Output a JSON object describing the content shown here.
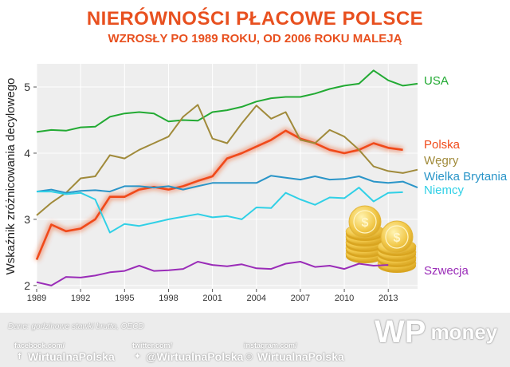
{
  "header": {
    "title": "NIERÓWNOŚCI PŁACOWE POLSCE",
    "subtitle": "WZROSŁY PO 1989 ROKU, OD 2006 ROKU MALEJĄ"
  },
  "colors": {
    "title": "#e8501f",
    "usa": "#22aa33",
    "polska": "#f04a1a",
    "wegry": "#a08a3a",
    "wielka_brytania": "#2a95c8",
    "niemcy": "#30d0e6",
    "szwecja": "#9a2cb8",
    "plot_bg": "#eeeeee"
  },
  "chart_data": {
    "type": "line",
    "title": "NIERÓWNOŚCI PŁACOWE POLSCE",
    "subtitle": "WZROSŁY PO 1989 ROKU, OD 2006 ROKU MALEJĄ",
    "xlabel": "",
    "ylabel": "Wskaźnik zróżnicowania decylowego",
    "xlim": [
      1989,
      2015
    ],
    "ylim": [
      1.95,
      5.35
    ],
    "x_ticks": [
      1989,
      1992,
      1995,
      1998,
      2001,
      2004,
      2007,
      2010,
      2013
    ],
    "x_tick_labels": [
      "1989",
      "1992",
      "1995",
      "1998",
      "2001",
      "2004",
      "2007",
      "2010",
      "2013"
    ],
    "y_ticks": [
      2,
      3,
      4,
      5
    ],
    "y_tick_labels": [
      "2",
      "3",
      "4",
      "5"
    ],
    "grid": true,
    "legend": "labels at right end of lines",
    "series": [
      {
        "name": "USA",
        "key": "usa",
        "x": [
          1989,
          1990,
          1991,
          1992,
          1993,
          1994,
          1995,
          1996,
          1997,
          1998,
          1999,
          2000,
          2001,
          2002,
          2003,
          2004,
          2005,
          2006,
          2007,
          2008,
          2009,
          2010,
          2011,
          2012,
          2013,
          2014,
          2015
        ],
        "y": [
          4.32,
          4.35,
          4.34,
          4.39,
          4.4,
          4.55,
          4.6,
          4.62,
          4.6,
          4.48,
          4.5,
          4.49,
          4.62,
          4.65,
          4.7,
          4.78,
          4.83,
          4.85,
          4.85,
          4.9,
          4.97,
          5.02,
          5.05,
          5.25,
          5.1,
          5.02,
          5.05
        ]
      },
      {
        "name": "Polska",
        "key": "polska",
        "x": [
          1989,
          1990,
          1991,
          1992,
          1993,
          1994,
          1995,
          1996,
          1997,
          1998,
          1999,
          2000,
          2001,
          2002,
          2003,
          2004,
          2005,
          2006,
          2007,
          2008,
          2009,
          2010,
          2011,
          2012,
          2013,
          2014
        ],
        "y": [
          2.39,
          2.92,
          2.82,
          2.86,
          3.0,
          3.34,
          3.34,
          3.45,
          3.49,
          3.45,
          3.5,
          3.58,
          3.65,
          3.92,
          4.0,
          4.1,
          4.2,
          4.34,
          4.22,
          4.15,
          4.05,
          4.0,
          4.05,
          4.15,
          4.08,
          4.05
        ]
      },
      {
        "name": "Węgry",
        "key": "wegry",
        "x": [
          1989,
          1990,
          1991,
          1992,
          1993,
          1994,
          1995,
          1996,
          1997,
          1998,
          1999,
          2000,
          2001,
          2002,
          2003,
          2004,
          2005,
          2006,
          2007,
          2008,
          2009,
          2010,
          2011,
          2012,
          2013,
          2014,
          2015
        ],
        "y": [
          3.06,
          3.25,
          3.4,
          3.62,
          3.65,
          3.97,
          3.92,
          4.05,
          4.15,
          4.25,
          4.55,
          4.73,
          4.22,
          4.15,
          4.45,
          4.72,
          4.52,
          4.62,
          4.2,
          4.15,
          4.35,
          4.25,
          4.05,
          3.8,
          3.73,
          3.7,
          3.75
        ]
      },
      {
        "name": "Wielka Brytania",
        "key": "wielka_brytania",
        "x": [
          1989,
          1990,
          1991,
          1992,
          1993,
          1994,
          1995,
          1996,
          1997,
          1998,
          1999,
          2000,
          2001,
          2002,
          2003,
          2004,
          2005,
          2006,
          2007,
          2008,
          2009,
          2010,
          2011,
          2012,
          2013,
          2014,
          2015
        ],
        "y": [
          3.42,
          3.45,
          3.4,
          3.43,
          3.44,
          3.42,
          3.5,
          3.5,
          3.48,
          3.5,
          3.45,
          3.5,
          3.55,
          3.55,
          3.55,
          3.55,
          3.66,
          3.63,
          3.6,
          3.65,
          3.6,
          3.61,
          3.65,
          3.57,
          3.55,
          3.57,
          3.48
        ]
      },
      {
        "name": "Niemcy",
        "key": "niemcy",
        "x": [
          1989,
          1990,
          1991,
          1992,
          1993,
          1994,
          1995,
          1996,
          1997,
          1998,
          1999,
          2000,
          2001,
          2002,
          2003,
          2004,
          2005,
          2006,
          2007,
          2008,
          2009,
          2010,
          2011,
          2012,
          2013,
          2014
        ],
        "y": [
          3.42,
          3.42,
          3.38,
          3.4,
          3.3,
          2.8,
          2.93,
          2.9,
          2.95,
          3.0,
          3.04,
          3.08,
          3.03,
          3.05,
          3.0,
          3.18,
          3.17,
          3.4,
          3.3,
          3.22,
          3.33,
          3.32,
          3.48,
          3.27,
          3.4,
          3.41
        ]
      },
      {
        "name": "Szwecja",
        "key": "szwecja",
        "x": [
          1989,
          1990,
          1991,
          1992,
          1993,
          1994,
          1995,
          1996,
          1997,
          1998,
          1999,
          2000,
          2001,
          2002,
          2003,
          2004,
          2005,
          2006,
          2007,
          2008,
          2009,
          2010,
          2011,
          2012,
          2013
        ],
        "y": [
          2.05,
          2.0,
          2.13,
          2.12,
          2.15,
          2.2,
          2.22,
          2.3,
          2.22,
          2.23,
          2.25,
          2.36,
          2.31,
          2.29,
          2.32,
          2.26,
          2.25,
          2.33,
          2.36,
          2.28,
          2.3,
          2.25,
          2.33,
          2.3,
          2.31
        ]
      }
    ]
  },
  "series_labels": {
    "usa": "USA",
    "polska": "Polska",
    "wegry": "Węgry",
    "wielka_brytania": "Wielka Brytania",
    "niemcy": "Niemcy",
    "szwecja": "Szwecja"
  },
  "footer": {
    "source": "Dane: godzinowe stawki brutto,  OECD",
    "facebook_small": "facebook.com/",
    "facebook_big": "WirtualnaPolska",
    "twitter_small": "twitter.com/",
    "twitter_big": "@WirtualnaPolska",
    "instagram_small": "instagram.com/",
    "instagram_big": "WirtualnaPolska",
    "brand_logo": "WP",
    "brand_name": "money"
  },
  "icons": {
    "facebook": "facebook-icon",
    "twitter": "twitter-icon",
    "instagram": "instagram-icon",
    "coins": "coins-illustration"
  }
}
